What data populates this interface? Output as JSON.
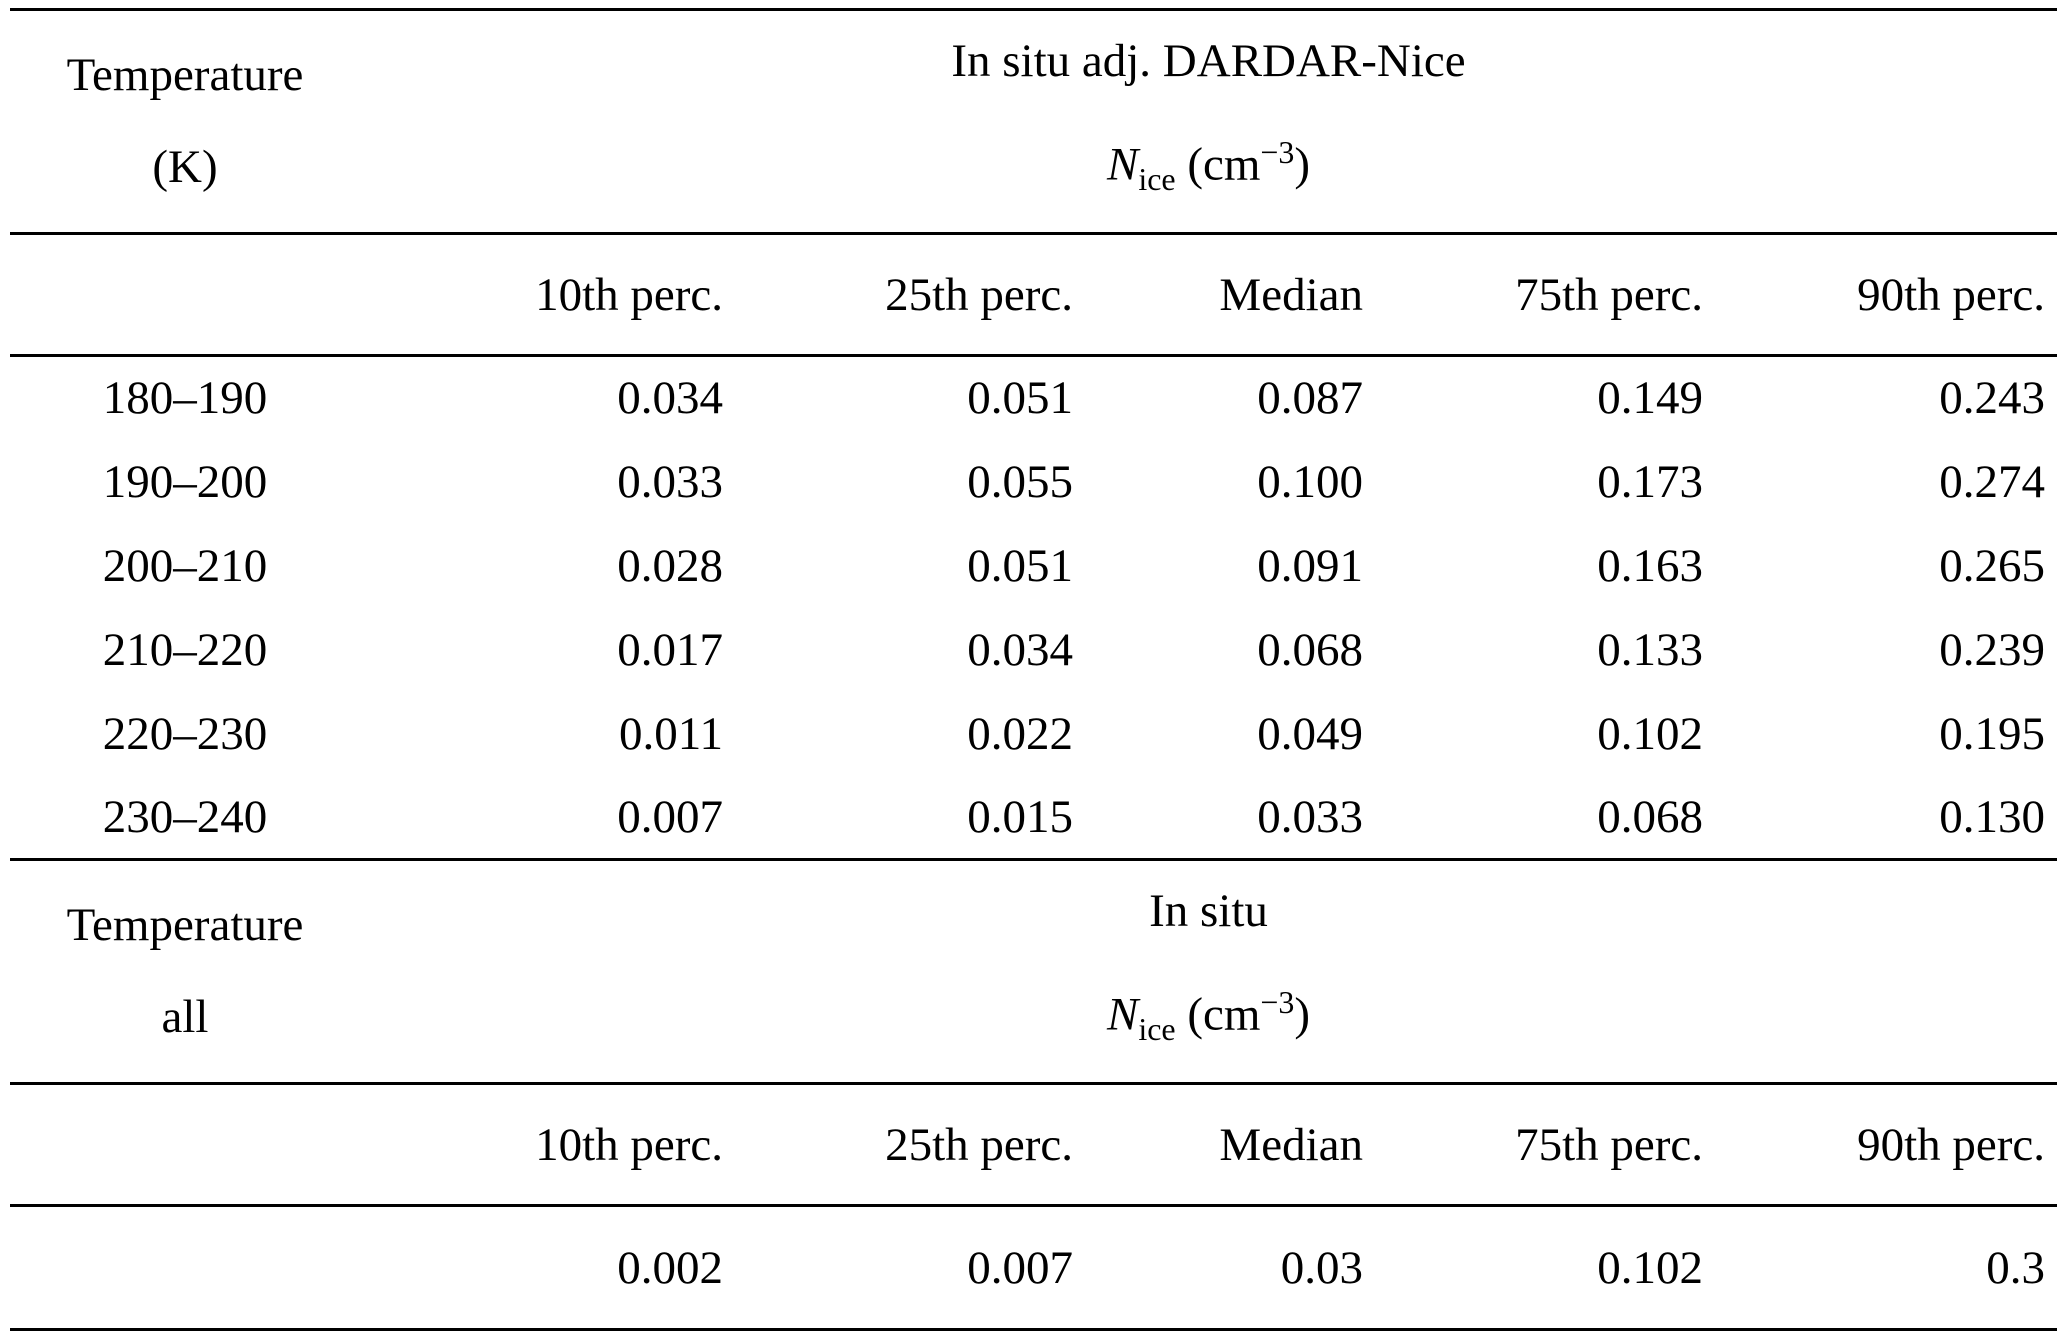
{
  "table1": {
    "stub": {
      "line1": "Temperature",
      "line2": "(K)"
    },
    "span": {
      "line1": "In situ adj. DARDAR-Nice"
    },
    "columns": [
      "10th perc.",
      "25th perc.",
      "Median",
      "75th perc.",
      "90th perc."
    ],
    "rows": [
      {
        "label": "180–190",
        "values": [
          "0.034",
          "0.051",
          "0.087",
          "0.149",
          "0.243"
        ]
      },
      {
        "label": "190–200",
        "values": [
          "0.033",
          "0.055",
          "0.100",
          "0.173",
          "0.274"
        ]
      },
      {
        "label": "200–210",
        "values": [
          "0.028",
          "0.051",
          "0.091",
          "0.163",
          "0.265"
        ]
      },
      {
        "label": "210–220",
        "values": [
          "0.017",
          "0.034",
          "0.068",
          "0.133",
          "0.239"
        ]
      },
      {
        "label": "220–230",
        "values": [
          "0.011",
          "0.022",
          "0.049",
          "0.102",
          "0.195"
        ]
      },
      {
        "label": "230–240",
        "values": [
          "0.007",
          "0.015",
          "0.033",
          "0.068",
          "0.130"
        ]
      }
    ]
  },
  "table2": {
    "stub": {
      "line1": "Temperature",
      "line2": "all"
    },
    "span": {
      "line1": "In situ"
    },
    "columns": [
      "10th perc.",
      "25th perc.",
      "Median",
      "75th perc.",
      "90th perc."
    ],
    "row": {
      "values": [
        "0.002",
        "0.007",
        "0.03",
        "0.102",
        "0.3"
      ]
    }
  },
  "math": {
    "symbol": "N",
    "subscript": "ice",
    "unit_open": " (cm",
    "unit_exp": "−3",
    "unit_close": ")"
  }
}
